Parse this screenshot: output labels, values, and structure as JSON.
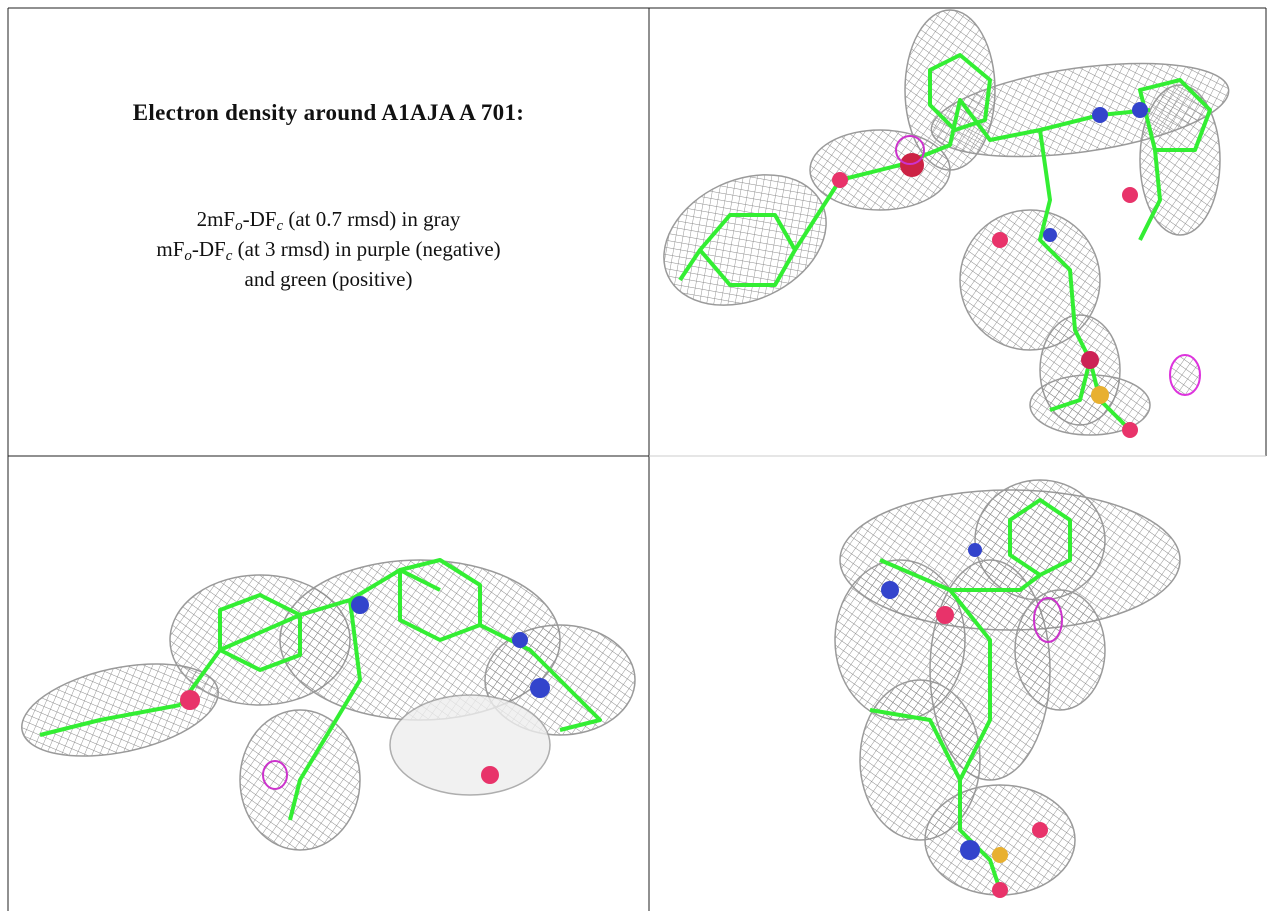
{
  "header": {
    "title": "Electron density around A1AJA A 701:"
  },
  "legend": {
    "lines": [
      [
        "2mF",
        "o",
        "-DF",
        "c",
        " (at 0.7 rmsd) in gray"
      ],
      [
        "mF",
        "o",
        "-DF",
        "c",
        " (at 3 rmsd) in purple (negative)"
      ],
      [
        "and green (positive)"
      ]
    ]
  }
}
